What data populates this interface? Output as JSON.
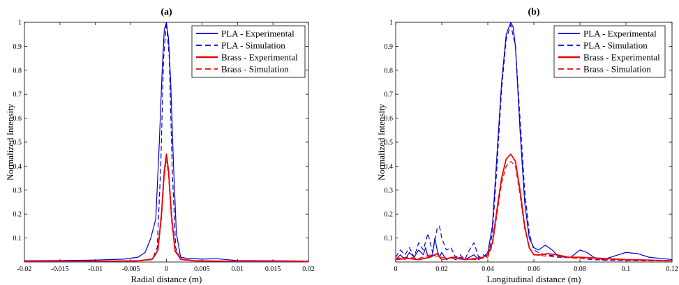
{
  "chart_data": [
    {
      "type": "line",
      "title": "(a)",
      "xlabel": "Radial distance (m)",
      "ylabel": "Normalized Intensity",
      "xlim": [
        -0.02,
        0.02
      ],
      "ylim": [
        0,
        1
      ],
      "xticks": [
        -0.02,
        -0.015,
        -0.01,
        -0.005,
        0,
        0.005,
        0.01,
        0.015,
        0.02
      ],
      "xtick_labels": [
        "-0.02",
        "-0.015",
        "-0.01",
        "-0.005",
        "0",
        "0.005",
        "0.01",
        "0.015",
        "0.02"
      ],
      "yticks": [
        0.1,
        0.2,
        0.3,
        0.4,
        0.5,
        0.6,
        0.7,
        0.8,
        0.9,
        1
      ],
      "ytick_labels": [
        "0.1",
        "0.2",
        "0.3",
        "0.4",
        "0.5",
        "0.6",
        "0.7",
        "0.8",
        "0.9",
        "1"
      ],
      "legend_position": "top-right",
      "series": [
        {
          "name": "PLA - Experimental",
          "color": "#0000cc",
          "style": "solid",
          "width": 1.2,
          "x": [
            -0.02,
            -0.015,
            -0.01,
            -0.006,
            -0.004,
            -0.003,
            -0.0022,
            -0.0015,
            -0.001,
            -0.0006,
            -0.0003,
            0,
            0.0003,
            0.0006,
            0.001,
            0.0014,
            0.002,
            0.003,
            0.005,
            0.007,
            0.01,
            0.015,
            0.02
          ],
          "y": [
            0.005,
            0.006,
            0.008,
            0.012,
            0.02,
            0.04,
            0.1,
            0.18,
            0.5,
            0.8,
            0.97,
            1.0,
            0.93,
            0.75,
            0.4,
            0.12,
            0.02,
            0.015,
            0.012,
            0.014,
            0.006,
            0.005,
            0.004
          ]
        },
        {
          "name": "PLA - Simulation",
          "color": "#0000cc",
          "style": "dashed",
          "width": 1.2,
          "x": [
            -0.02,
            -0.01,
            -0.004,
            -0.002,
            -0.0013,
            -0.0008,
            -0.0004,
            0,
            0.0004,
            0.0008,
            0.0013,
            0.002,
            0.004,
            0.01,
            0.02
          ],
          "y": [
            0.002,
            0.003,
            0.004,
            0.01,
            0.06,
            0.4,
            0.85,
            1.0,
            0.85,
            0.4,
            0.06,
            0.01,
            0.004,
            0.003,
            0.002
          ]
        },
        {
          "name": "Brass - Experimental",
          "color": "#ee0000",
          "style": "solid",
          "width": 1.8,
          "x": [
            -0.02,
            -0.01,
            -0.004,
            -0.002,
            -0.0012,
            -0.0007,
            -0.0003,
            0,
            0.0003,
            0.0007,
            0.0012,
            0.002,
            0.004,
            0.01,
            0.02
          ],
          "y": [
            0.002,
            0.003,
            0.005,
            0.012,
            0.05,
            0.2,
            0.38,
            0.45,
            0.38,
            0.2,
            0.05,
            0.012,
            0.005,
            0.003,
            0.002
          ]
        },
        {
          "name": "Brass - Simulation",
          "color": "#ee0000",
          "style": "dashed",
          "width": 1.2,
          "x": [
            -0.02,
            -0.01,
            -0.004,
            -0.002,
            -0.0012,
            -0.0007,
            -0.0003,
            0,
            0.0003,
            0.0007,
            0.0012,
            0.002,
            0.004,
            0.01,
            0.02
          ],
          "y": [
            0.002,
            0.003,
            0.004,
            0.01,
            0.045,
            0.18,
            0.36,
            0.43,
            0.36,
            0.18,
            0.045,
            0.01,
            0.004,
            0.003,
            0.002
          ]
        }
      ]
    },
    {
      "type": "line",
      "title": "(b)",
      "xlabel": "Longitudinal distance (m)",
      "ylabel": "Normalized Intensity",
      "xlim": [
        0,
        0.12
      ],
      "ylim": [
        0,
        1
      ],
      "xticks": [
        0,
        0.02,
        0.04,
        0.06,
        0.08,
        0.1,
        0.12
      ],
      "xtick_labels": [
        "0",
        "0.02",
        "0.04",
        "0.06",
        "0.08",
        "0.1",
        "0.12"
      ],
      "yticks": [
        0.1,
        0.2,
        0.3,
        0.4,
        0.5,
        0.6,
        0.7,
        0.8,
        0.9,
        1
      ],
      "ytick_labels": [
        "0.1",
        "0.2",
        "0.3",
        "0.4",
        "0.5",
        "0.6",
        "0.7",
        "0.8",
        "0.9",
        "1"
      ],
      "legend_position": "top-right",
      "series": [
        {
          "name": "PLA - Experimental",
          "color": "#0000cc",
          "style": "solid",
          "width": 1.2,
          "x": [
            0,
            0.002,
            0.004,
            0.006,
            0.008,
            0.01,
            0.012,
            0.013,
            0.014,
            0.016,
            0.017,
            0.018,
            0.019,
            0.02,
            0.022,
            0.024,
            0.026,
            0.028,
            0.03,
            0.032,
            0.034,
            0.036,
            0.038,
            0.04,
            0.042,
            0.044,
            0.046,
            0.048,
            0.05,
            0.051,
            0.052,
            0.054,
            0.056,
            0.058,
            0.06,
            0.062,
            0.065,
            0.068,
            0.07,
            0.073,
            0.076,
            0.08,
            0.083,
            0.086,
            0.09,
            0.095,
            0.1,
            0.105,
            0.11,
            0.115,
            0.12
          ],
          "y": [
            0.01,
            0.03,
            0.01,
            0.04,
            0.02,
            0.05,
            0.03,
            0.06,
            0.02,
            0.03,
            0.1,
            0.05,
            0.02,
            0.04,
            0.01,
            0.02,
            0.01,
            0.02,
            0.01,
            0.02,
            0.03,
            0.01,
            0.02,
            0.04,
            0.15,
            0.45,
            0.75,
            0.95,
            1.0,
            0.98,
            0.9,
            0.55,
            0.25,
            0.1,
            0.06,
            0.05,
            0.07,
            0.05,
            0.03,
            0.02,
            0.02,
            0.05,
            0.04,
            0.02,
            0.01,
            0.025,
            0.04,
            0.035,
            0.02,
            0.015,
            0.01
          ]
        },
        {
          "name": "PLA - Simulation",
          "color": "#0000cc",
          "style": "dashed",
          "width": 1.2,
          "x": [
            0,
            0.002,
            0.004,
            0.006,
            0.008,
            0.01,
            0.012,
            0.014,
            0.016,
            0.018,
            0.019,
            0.02,
            0.022,
            0.024,
            0.026,
            0.028,
            0.03,
            0.032,
            0.034,
            0.036,
            0.038,
            0.04,
            0.042,
            0.044,
            0.046,
            0.048,
            0.05,
            0.052,
            0.054,
            0.056,
            0.058,
            0.06,
            0.062,
            0.065,
            0.07,
            0.075,
            0.08,
            0.085,
            0.09,
            0.1,
            0.11,
            0.12
          ],
          "y": [
            0.02,
            0.05,
            0.03,
            0.06,
            0.02,
            0.08,
            0.05,
            0.12,
            0.04,
            0.14,
            0.15,
            0.1,
            0.05,
            0.06,
            0.02,
            0.03,
            0.01,
            0.05,
            0.08,
            0.02,
            0.03,
            0.02,
            0.12,
            0.4,
            0.72,
            0.93,
            0.99,
            0.9,
            0.6,
            0.3,
            0.12,
            0.05,
            0.04,
            0.03,
            0.025,
            0.02,
            0.015,
            0.01,
            0.008,
            0.006,
            0.005,
            0.004
          ]
        },
        {
          "name": "Brass - Experimental",
          "color": "#ee0000",
          "style": "solid",
          "width": 1.8,
          "x": [
            0,
            0.005,
            0.01,
            0.015,
            0.018,
            0.02,
            0.025,
            0.03,
            0.035,
            0.038,
            0.04,
            0.042,
            0.044,
            0.046,
            0.048,
            0.05,
            0.052,
            0.054,
            0.056,
            0.058,
            0.06,
            0.063,
            0.066,
            0.07,
            0.075,
            0.08,
            0.09,
            0.1,
            0.11,
            0.12
          ],
          "y": [
            0.01,
            0.015,
            0.01,
            0.02,
            0.035,
            0.01,
            0.02,
            0.01,
            0.015,
            0.02,
            0.03,
            0.08,
            0.22,
            0.35,
            0.43,
            0.45,
            0.42,
            0.3,
            0.15,
            0.06,
            0.03,
            0.03,
            0.035,
            0.03,
            0.02,
            0.02,
            0.015,
            0.01,
            0.008,
            0.005
          ]
        },
        {
          "name": "Brass - Simulation",
          "color": "#ee0000",
          "style": "dashed",
          "width": 1.2,
          "x": [
            0,
            0.005,
            0.01,
            0.015,
            0.02,
            0.025,
            0.03,
            0.035,
            0.04,
            0.042,
            0.044,
            0.046,
            0.048,
            0.05,
            0.052,
            0.054,
            0.056,
            0.058,
            0.06,
            0.065,
            0.07,
            0.08,
            0.09,
            0.1,
            0.11,
            0.12
          ],
          "y": [
            0.015,
            0.02,
            0.015,
            0.03,
            0.02,
            0.015,
            0.01,
            0.01,
            0.02,
            0.07,
            0.2,
            0.33,
            0.4,
            0.42,
            0.4,
            0.28,
            0.14,
            0.06,
            0.03,
            0.025,
            0.02,
            0.015,
            0.01,
            0.008,
            0.006,
            0.005
          ]
        }
      ]
    }
  ]
}
